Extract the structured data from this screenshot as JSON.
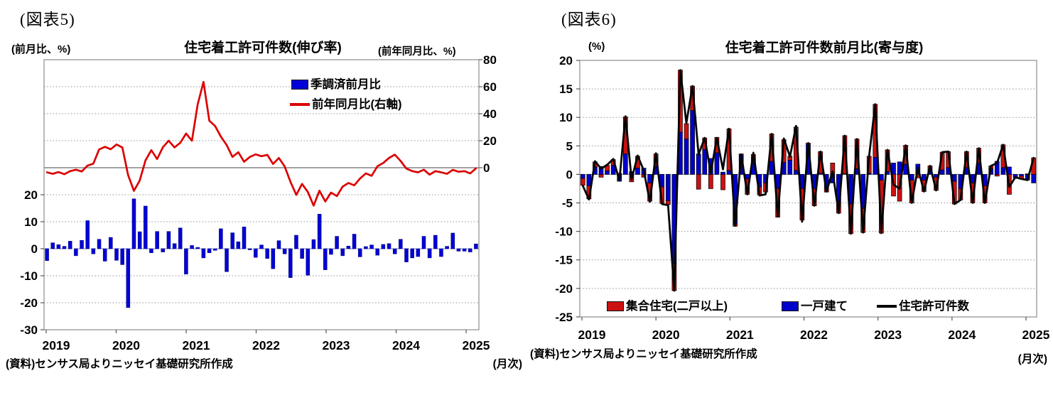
{
  "chart_data": [
    {
      "id": "fig5",
      "type": "bar",
      "tag": "(図表5)",
      "title": "住宅着工許可件数(伸び率)",
      "left_axis_label": "(前月比、%)",
      "right_axis_label": "(前年同月比、%)",
      "source": "(資料)センサス局よりニッセイ基礎研究所作成",
      "freq_label": "(月次)",
      "x_years": [
        2019,
        2020,
        2021,
        2022,
        2023,
        2024,
        2025
      ],
      "left_ticks": [
        20,
        10,
        0,
        -10,
        -20,
        -30
      ],
      "right_ticks": [
        80,
        60,
        40,
        20,
        0
      ],
      "left_range": [
        -30,
        70
      ],
      "right_range": [
        -120,
        80
      ],
      "grid": "dotted",
      "legend": [
        {
          "label": "季調済前月比",
          "type": "bar",
          "color": "#0000d8"
        },
        {
          "label": "前年同月比(右軸)",
          "type": "line",
          "color": "#dc0000"
        }
      ],
      "series": [
        {
          "name": "季調済前月比",
          "type": "bar",
          "axis": "left",
          "color": "#0000d8",
          "values": [
            -4.4,
            2.2,
            1.5,
            0.9,
            2.8,
            -2.6,
            3.1,
            10.4,
            -1.9,
            3.5,
            -4.6,
            4.2,
            -4.3,
            -5.9,
            -21.8,
            18.5,
            6.3,
            15.8,
            -1.5,
            6.4,
            -1.2,
            6.4,
            1.9,
            7.7,
            -9.4,
            1.2,
            0.5,
            -3.4,
            -1.5,
            -0.6,
            7.4,
            -8.5,
            5.9,
            2.6,
            8.1,
            -0.4,
            -3.2,
            1.4,
            -3.6,
            -7.4,
            3.0,
            -1.9,
            -10.7,
            5.0,
            -3.6,
            -9.8,
            3.4,
            12.8,
            -7.8,
            -2.1,
            4.6,
            -2.6,
            1.0,
            5.4,
            -3.0,
            0.8,
            1.4,
            -2.4,
            1.6,
            1.9,
            -1.9,
            3.5,
            -4.9,
            -3.4,
            -2.9,
            4.6,
            -3.4,
            5.0,
            -2.9,
            0.9,
            5.8,
            -0.9,
            -0.9,
            -1.2,
            1.8
          ]
        },
        {
          "name": "前年同月比(右軸)",
          "type": "line",
          "axis": "right",
          "color": "#dc0000",
          "values": [
            -3.4,
            -4.5,
            -3.2,
            -4.8,
            -2.5,
            -1.5,
            -2.8,
            1.6,
            3.0,
            13.5,
            15.5,
            13.7,
            17.2,
            15.0,
            -5.5,
            -17.1,
            -9.5,
            5.5,
            13.0,
            6.4,
            15.2,
            20.0,
            15.0,
            18.5,
            25.3,
            20.0,
            46.8,
            63.6,
            34.8,
            30.9,
            23.0,
            16.8,
            8.0,
            11.5,
            4.4,
            8.0,
            9.9,
            8.5,
            9.5,
            2.8,
            7.2,
            1.0,
            -10.4,
            -20.1,
            -12.0,
            -18.0,
            -28.1,
            -17.0,
            -25.0,
            -18.4,
            -21.0,
            -14.0,
            -11.3,
            -13.0,
            -8.0,
            -4.2,
            -6.0,
            1.1,
            3.5,
            7.2,
            9.7,
            5.0,
            -0.7,
            -2.5,
            -3.4,
            -1.5,
            -5.1,
            -2.5,
            -3.4,
            -4.5,
            -1.6,
            -3.0,
            -2.5,
            -4.2,
            -0.5
          ]
        }
      ]
    },
    {
      "id": "fig6",
      "type": "bar",
      "tag": "(図表6)",
      "title": "住宅着工許可件数前月比(寄与度)",
      "left_axis_label": "(%)",
      "source": "(資料)センサス局よりニッセイ基礎研究所作成",
      "freq_label": "(月次)",
      "x_years": [
        2019,
        2020,
        2021,
        2022,
        2023,
        2024,
        2025
      ],
      "y_ticks": [
        20,
        15,
        10,
        5,
        0,
        -5,
        -10,
        -15,
        -20,
        -25
      ],
      "ylim": [
        -25,
        20
      ],
      "grid": "dotted",
      "legend": [
        {
          "label": "集合住宅(二戸以上)",
          "type": "bar",
          "color": "#cc1111"
        },
        {
          "label": "一戸建て",
          "type": "bar",
          "color": "#0000cc"
        },
        {
          "label": "住宅許可件数",
          "type": "line",
          "color": "#050505"
        }
      ],
      "series": [
        {
          "name": "一戸建て",
          "type": "stacked-bar",
          "color": "#0000cc",
          "values": [
            -0.7,
            -2.0,
            1.3,
            1.4,
            0.6,
            1.6,
            -1.2,
            3.6,
            0.5,
            1.1,
            1.1,
            -1.5,
            1.5,
            -2.2,
            -4.6,
            -15.7,
            7.4,
            6.2,
            11.2,
            3.6,
            4.4,
            2.8,
            3.8,
            0.4,
            0.7,
            -8.7,
            3.4,
            -0.8,
            2.5,
            -2.2,
            -1.5,
            2.3,
            -2.5,
            2.1,
            2.5,
            0.7,
            -2.5,
            5.3,
            -2.5,
            0.2,
            -2.5,
            -1.5,
            -4.8,
            0.1,
            -5.2,
            1.0,
            -6.0,
            0.2,
            3.0,
            -1.0,
            0.5,
            2.0,
            2.2,
            1.8,
            -1.0,
            1.8,
            -1.0,
            0.7,
            -0.5,
            0.8,
            1.2,
            -1.2,
            -2.5,
            1.2,
            -1.5,
            2.0,
            -2.0,
            1.0,
            2.3,
            1.2,
            1.3,
            -0.5,
            -0.3,
            -1.0,
            -1.5
          ]
        },
        {
          "name": "集合住宅(二戸以上)",
          "type": "stacked-bar",
          "color": "#cc1111",
          "values": [
            -1.2,
            -2.3,
            0.9,
            -0.5,
            1.0,
            1.0,
            0.2,
            6.5,
            -1.3,
            2.1,
            -0.5,
            -3.2,
            2.1,
            -2.9,
            -0.7,
            -4.7,
            10.9,
            2.7,
            4.3,
            -2.6,
            2.0,
            -2.5,
            2.7,
            -2.7,
            7.3,
            -0.4,
            0.2,
            -2.7,
            1.0,
            -1.4,
            -1.6,
            4.8,
            -5.0,
            4.0,
            0.7,
            7.6,
            -5.5,
            0.2,
            -3.0,
            3.8,
            -0.6,
            2.0,
            -2.0,
            6.7,
            -5.2,
            5.2,
            -4.2,
            3.0,
            9.3,
            -9.3,
            3.8,
            -3.8,
            -4.7,
            3.3,
            -4.0,
            -0.6,
            -2.0,
            0.8,
            -2.3,
            3.1,
            2.8,
            -4.0,
            -2.0,
            2.8,
            -3.5,
            2.6,
            -3.0,
            0.5,
            -0.3,
            4.0,
            -3.5,
            -0.1,
            -0.5,
            0.1,
            2.9
          ]
        },
        {
          "name": "住宅許可件数",
          "type": "line",
          "color": "#050505",
          "values": [
            -2.0,
            -4.4,
            2.3,
            1.0,
            1.7,
            2.7,
            -1.1,
            10.2,
            -0.9,
            3.3,
            0.7,
            -4.8,
            3.7,
            -5.2,
            -5.4,
            -20.4,
            18.3,
            9.0,
            15.5,
            3.5,
            6.4,
            0.3,
            6.4,
            0.9,
            8.0,
            -9.0,
            3.5,
            -3.5,
            3.8,
            -3.7,
            -3.5,
            7.1,
            -7.4,
            6.3,
            3.1,
            8.5,
            -8.3,
            5.5,
            -5.5,
            4.0,
            -3.0,
            0.5,
            -6.8,
            6.8,
            -10.4,
            6.2,
            -10.2,
            3.2,
            12.3,
            -10.3,
            4.3,
            -1.8,
            -2.5,
            5.1,
            -5.0,
            1.2,
            -3.0,
            1.5,
            -2.8,
            3.9,
            4.0,
            -5.2,
            -4.5,
            4.0,
            -5.0,
            4.6,
            -5.0,
            1.5,
            2.0,
            5.2,
            -2.2,
            -0.5,
            -0.8,
            -1.0,
            2.9
          ]
        }
      ]
    }
  ]
}
